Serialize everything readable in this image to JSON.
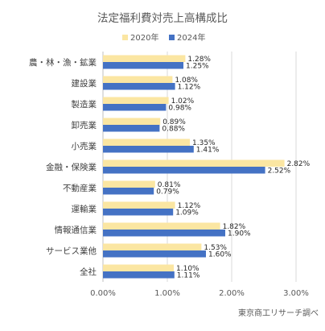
{
  "chart_data": {
    "type": "bar",
    "orientation": "horizontal",
    "title": "法定福利費対売上高構成比",
    "categories": [
      "農・林・漁・鉱業",
      "建設業",
      "製造業",
      "卸売業",
      "小売業",
      "金融・保険業",
      "不動産業",
      "運輸業",
      "情報通信業",
      "サービス業他",
      "全社"
    ],
    "series": [
      {
        "name": "2020年",
        "color": "#fbe6a2",
        "values": [
          1.28,
          1.08,
          1.02,
          0.89,
          1.35,
          2.82,
          0.81,
          1.12,
          1.82,
          1.53,
          1.1
        ],
        "labels": [
          "1.28%",
          "1.08%",
          "1.02%",
          "0.89%",
          "1.35%",
          "2.82%",
          "0.81%",
          "1.12%",
          "1.82%",
          "1.53%",
          "1.10%"
        ]
      },
      {
        "name": "2024年",
        "color": "#4472c4",
        "values": [
          1.25,
          1.12,
          0.98,
          0.88,
          1.41,
          2.52,
          0.79,
          1.09,
          1.9,
          1.6,
          1.11
        ],
        "labels": [
          "1.25%",
          "1.12%",
          "0.98%",
          "0.88%",
          "1.41%",
          "2.52%",
          "0.79%",
          "1.09%",
          "1.90%",
          "1.60%",
          "1.11%"
        ]
      }
    ],
    "xlim": [
      0,
      3
    ],
    "xticks": [
      0,
      1,
      2,
      3
    ],
    "xtick_labels": [
      "0.00%",
      "1.00%",
      "2.00%",
      "3.00%"
    ],
    "grid": true,
    "legend_position": "top",
    "source": "東京商工リサーチ調べ"
  }
}
